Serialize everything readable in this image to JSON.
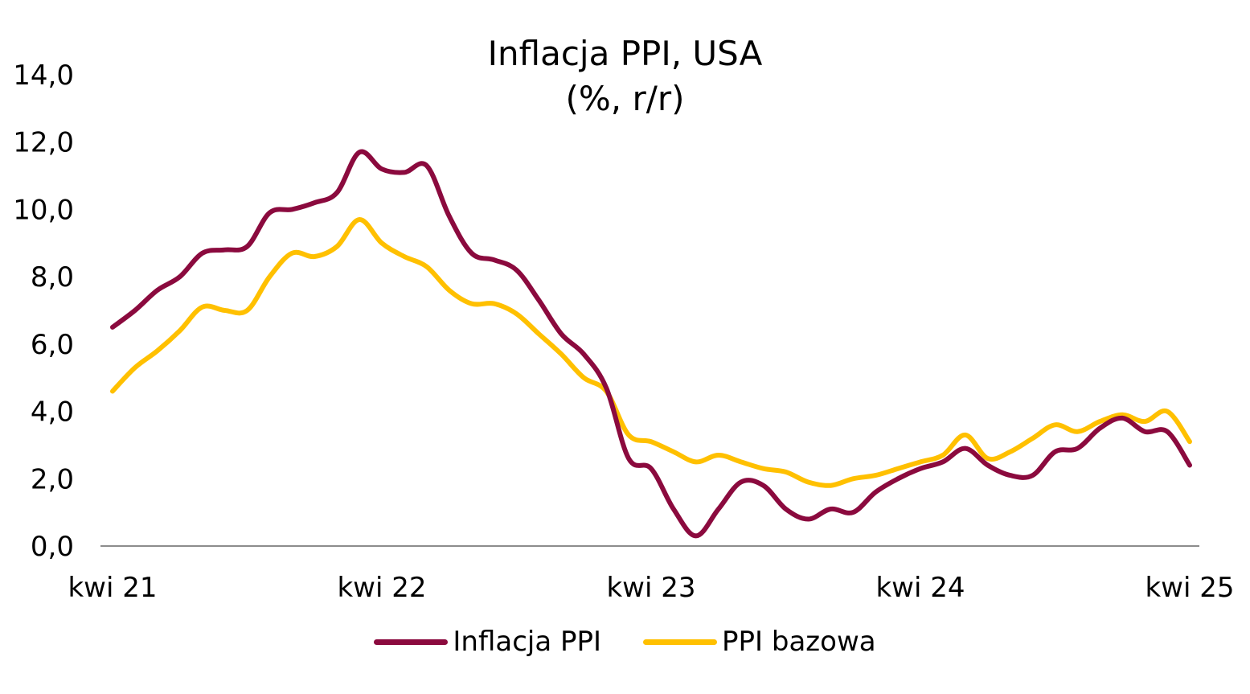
{
  "chart_data": {
    "type": "line",
    "title": "Inflacja PPI, USA",
    "subtitle": "(%, r/r)",
    "xlabel": "",
    "ylabel": "",
    "x_tick_labels": [
      "kwi 21",
      "kwi 22",
      "kwi 23",
      "kwi 24",
      "kwi 25"
    ],
    "y_tick_labels": [
      "0,0",
      "2,0",
      "4,0",
      "6,0",
      "8,0",
      "10,0",
      "12,0",
      "14,0"
    ],
    "ylim": [
      0,
      14
    ],
    "grid": false,
    "legend_position": "bottom",
    "x": [
      "2021-04",
      "2021-05",
      "2021-06",
      "2021-07",
      "2021-08",
      "2021-09",
      "2021-10",
      "2021-11",
      "2021-12",
      "2022-01",
      "2022-02",
      "2022-03",
      "2022-04",
      "2022-05",
      "2022-06",
      "2022-07",
      "2022-08",
      "2022-09",
      "2022-10",
      "2022-11",
      "2022-12",
      "2023-01",
      "2023-02",
      "2023-03",
      "2023-04",
      "2023-05",
      "2023-06",
      "2023-07",
      "2023-08",
      "2023-09",
      "2023-10",
      "2023-11",
      "2023-12",
      "2024-01",
      "2024-02",
      "2024-03",
      "2024-04",
      "2024-05",
      "2024-06",
      "2024-07",
      "2024-08",
      "2024-09",
      "2024-10",
      "2024-11",
      "2024-12",
      "2025-01",
      "2025-02",
      "2025-03",
      "2025-04"
    ],
    "series": [
      {
        "name": "Inflacja PPI",
        "color": "#8B0A3E",
        "values": [
          6.5,
          7.0,
          7.6,
          8.0,
          8.7,
          8.8,
          8.9,
          9.9,
          10.0,
          10.2,
          10.5,
          11.7,
          11.2,
          11.1,
          11.3,
          9.8,
          8.7,
          8.5,
          8.2,
          7.3,
          6.3,
          5.7,
          4.7,
          2.6,
          2.3,
          1.1,
          0.3,
          1.1,
          1.9,
          1.8,
          1.1,
          0.8,
          1.1,
          1.0,
          1.6,
          2.0,
          2.3,
          2.5,
          2.9,
          2.4,
          2.1,
          2.1,
          2.8,
          2.9,
          3.5,
          3.8,
          3.4,
          3.4,
          2.4
        ]
      },
      {
        "name": "PPI bazowa",
        "color": "#FFC000",
        "values": [
          4.6,
          5.3,
          5.8,
          6.4,
          7.1,
          7.0,
          7.0,
          8.0,
          8.7,
          8.6,
          8.9,
          9.7,
          9.0,
          8.6,
          8.3,
          7.6,
          7.2,
          7.2,
          6.9,
          6.3,
          5.7,
          5.0,
          4.6,
          3.3,
          3.1,
          2.8,
          2.5,
          2.7,
          2.5,
          2.3,
          2.2,
          1.9,
          1.8,
          2.0,
          2.1,
          2.3,
          2.5,
          2.7,
          3.3,
          2.6,
          2.8,
          3.2,
          3.6,
          3.4,
          3.7,
          3.9,
          3.7,
          4.0,
          3.1
        ]
      }
    ]
  },
  "legend": {
    "items": [
      {
        "label": "Inflacja PPI",
        "color": "#8B0A3E"
      },
      {
        "label": "PPI bazowa",
        "color": "#FFC000"
      }
    ]
  }
}
